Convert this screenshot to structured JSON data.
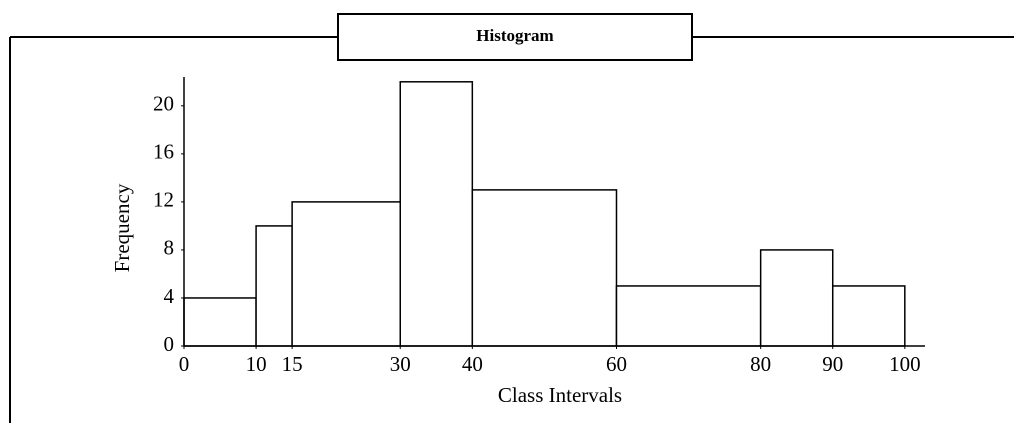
{
  "chart_data": {
    "type": "histogram",
    "title": "Histogram",
    "xlabel": "Class Intervals",
    "ylabel": "Frequency",
    "bins": [
      0,
      10,
      15,
      30,
      40,
      60,
      80,
      90,
      100
    ],
    "counts": [
      4,
      10,
      12,
      22,
      13,
      5,
      8,
      5
    ],
    "color": "#ffffff",
    "edgecolor": "#000000",
    "xlim": [
      0,
      102.8
    ],
    "xticks": [
      0,
      10,
      15,
      30,
      40,
      60,
      80,
      90,
      100
    ],
    "ylim": [
      0,
      22.4
    ],
    "yticks": [
      0,
      4,
      8,
      12,
      16,
      20
    ],
    "grid": false
  }
}
